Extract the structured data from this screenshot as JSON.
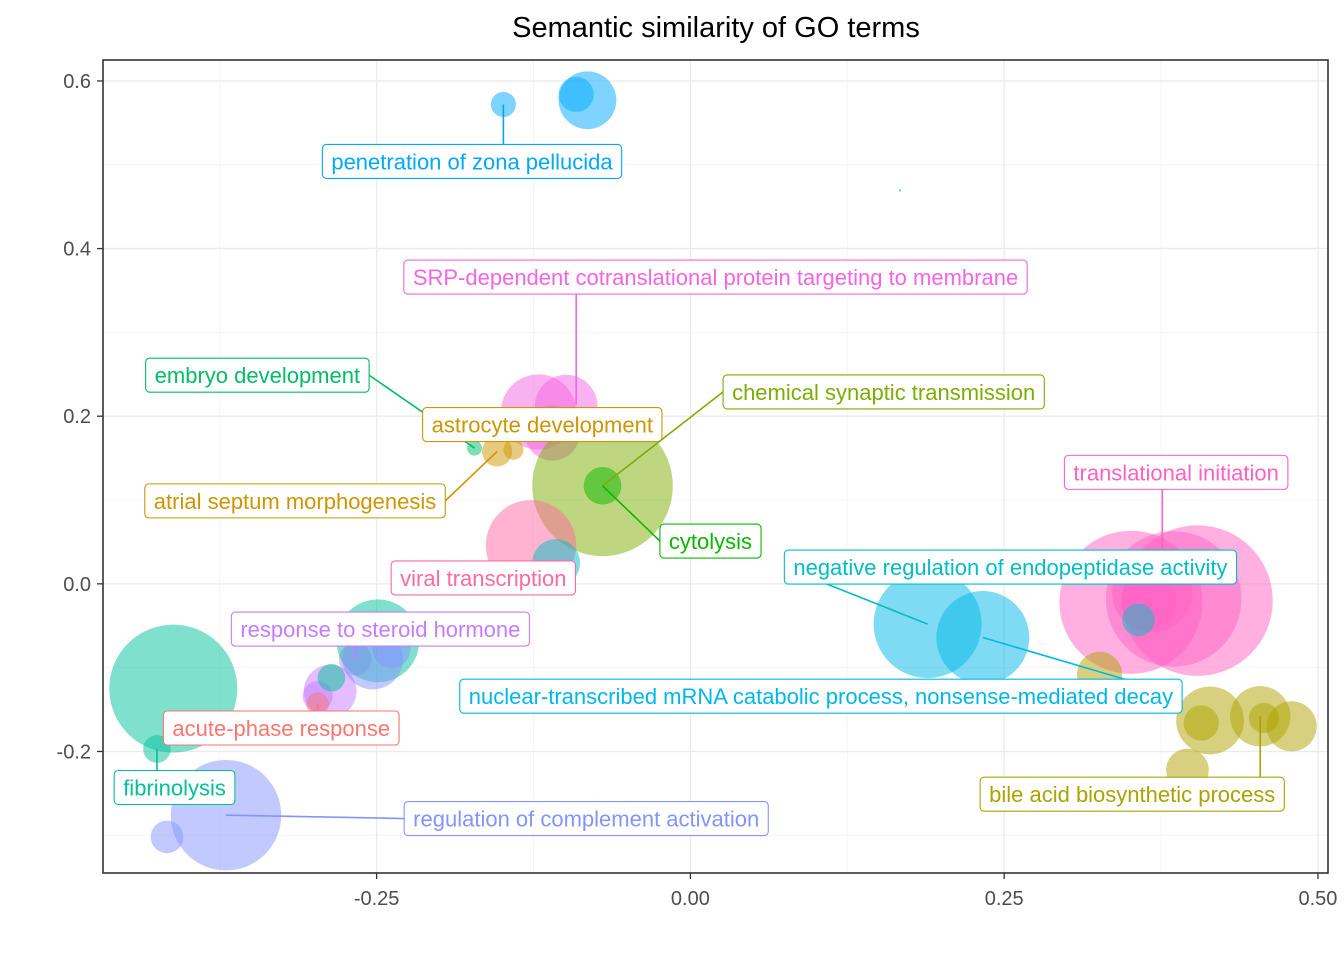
{
  "chart_data": {
    "type": "scatter",
    "title": "Semantic similarity of GO terms",
    "xlabel": "",
    "ylabel": "",
    "xlim": [
      -0.468,
      0.508
    ],
    "ylim": [
      -0.345,
      0.625
    ],
    "x_ticks": [
      -0.25,
      0.0,
      0.25,
      0.5
    ],
    "x_tick_labels": [
      "-0.25",
      "0.00",
      "0.25",
      "0.50"
    ],
    "y_ticks": [
      0.6,
      0.4,
      0.2,
      0.0,
      -0.2
    ],
    "y_tick_labels": [
      "0.6",
      "0.4",
      "0.2",
      "0.0",
      "-0.2"
    ],
    "grid": true,
    "legend": "none",
    "point_opacity": 0.5,
    "clusters": [
      {
        "color": "#00A9FF",
        "points": [
          {
            "x": -0.149,
            "y": 0.572,
            "r": 0.01
          },
          {
            "x": -0.082,
            "y": 0.577,
            "r": 0.023
          },
          {
            "x": -0.091,
            "y": 0.584,
            "r": 0.014
          }
        ]
      },
      {
        "color": "#F564E3",
        "points": [
          {
            "x": -0.121,
            "y": 0.205,
            "r": 0.03
          },
          {
            "x": -0.099,
            "y": 0.212,
            "r": 0.025
          },
          {
            "x": -0.11,
            "y": 0.18,
            "r": 0.022
          }
        ]
      },
      {
        "color": "#00BE67",
        "points": [
          {
            "x": -0.172,
            "y": 0.162,
            "r": 0.006
          }
        ]
      },
      {
        "color": "#CD9600",
        "points": [
          {
            "x": -0.154,
            "y": 0.158,
            "r": 0.012
          },
          {
            "x": -0.141,
            "y": 0.16,
            "r": 0.008
          }
        ]
      },
      {
        "color": "#7CAE00",
        "points": [
          {
            "x": -0.07,
            "y": 0.117,
            "r": 0.056
          }
        ]
      },
      {
        "color": "#0CB702",
        "points": [
          {
            "x": -0.07,
            "y": 0.117,
            "r": 0.015
          }
        ]
      },
      {
        "color": "#FF68A1",
        "points": [
          {
            "x": -0.127,
            "y": 0.046,
            "r": 0.036
          }
        ]
      },
      {
        "color": "#00BFC4",
        "points": [
          {
            "x": -0.107,
            "y": 0.025,
            "r": 0.019
          }
        ]
      },
      {
        "color": "#C77CFF",
        "points": [
          {
            "x": -0.287,
            "y": -0.128,
            "r": 0.021
          },
          {
            "x": -0.297,
            "y": -0.134,
            "r": 0.012
          },
          {
            "x": -0.267,
            "y": -0.09,
            "r": 0.013
          }
        ]
      },
      {
        "color": "#00C19A",
        "points": [
          {
            "x": -0.249,
            "y": -0.068,
            "r": 0.033
          },
          {
            "x": -0.412,
            "y": -0.125,
            "r": 0.051
          },
          {
            "x": -0.425,
            "y": -0.197,
            "r": 0.011
          },
          {
            "x": -0.286,
            "y": -0.112,
            "r": 0.011
          },
          {
            "x": -0.113,
            "y": -0.138,
            "r": 0.008
          }
        ]
      },
      {
        "color": "#F8766D",
        "points": [
          {
            "x": -0.297,
            "y": -0.143,
            "r": 0.009
          }
        ]
      },
      {
        "color": "#8494FF",
        "points": [
          {
            "x": -0.253,
            "y": -0.09,
            "r": 0.024
          },
          {
            "x": -0.238,
            "y": -0.078,
            "r": 0.015
          },
          {
            "x": -0.37,
            "y": -0.276,
            "r": 0.044
          },
          {
            "x": -0.417,
            "y": -0.302,
            "r": 0.013
          }
        ]
      },
      {
        "color": "#FF61C3",
        "points": [
          {
            "x": 0.351,
            "y": -0.022,
            "r": 0.057
          },
          {
            "x": 0.404,
            "y": -0.02,
            "r": 0.06
          },
          {
            "x": 0.385,
            "y": -0.018,
            "r": 0.054
          },
          {
            "x": 0.368,
            "y": -0.01,
            "r": 0.032
          },
          {
            "x": 0.365,
            "y": -0.021,
            "r": 0.022
          }
        ]
      },
      {
        "color": "#00B8E7",
        "points": [
          {
            "x": 0.189,
            "y": -0.048,
            "r": 0.043
          },
          {
            "x": 0.233,
            "y": -0.064,
            "r": 0.037
          }
        ]
      },
      {
        "color": "#00BFC4",
        "points": [
          {
            "x": 0.357,
            "y": -0.043,
            "r": 0.013
          }
        ]
      },
      {
        "color": "#AEA200",
        "points": [
          {
            "x": 0.326,
            "y": -0.108,
            "r": 0.018
          },
          {
            "x": 0.414,
            "y": -0.163,
            "r": 0.027
          },
          {
            "x": 0.454,
            "y": -0.158,
            "r": 0.024
          },
          {
            "x": 0.479,
            "y": -0.17,
            "r": 0.02
          },
          {
            "x": 0.396,
            "y": -0.222,
            "r": 0.017
          },
          {
            "x": 0.407,
            "y": -0.166,
            "r": 0.014
          },
          {
            "x": 0.457,
            "y": -0.16,
            "r": 0.012
          }
        ]
      }
    ],
    "labels": [
      {
        "text": "penetration of zona pellucida",
        "color": "#00A9FF",
        "lx": -0.174,
        "ly": 0.504,
        "px": -0.149,
        "py": 0.572,
        "lineFromLabel": "top"
      },
      {
        "text": "SRP-dependent cotranslational protein targeting to membrane",
        "color": "#F564E3",
        "lx": 0.02,
        "ly": 0.366,
        "px": -0.091,
        "py": 0.214,
        "lineFromLabel": "bottom"
      },
      {
        "text": "embryo development",
        "color": "#00BE67",
        "lx": -0.345,
        "ly": 0.249,
        "px": -0.172,
        "py": 0.162,
        "lineFromLabel": "right"
      },
      {
        "text": "astrocyte development",
        "color": "#CD9600",
        "lx": -0.118,
        "ly": 0.19,
        "px": -0.156,
        "py": 0.158,
        "lineFromLabel": "none"
      },
      {
        "text": "chemical synaptic transmission",
        "color": "#7CAE00",
        "lx": 0.154,
        "ly": 0.229,
        "px": -0.07,
        "py": 0.117,
        "lineFromLabel": "left"
      },
      {
        "text": "atrial septum morphogenesis",
        "color": "#CD9600",
        "lx": -0.315,
        "ly": 0.099,
        "px": -0.154,
        "py": 0.158,
        "lineFromLabel": "right"
      },
      {
        "text": "translational initiation",
        "color": "#FF61C3",
        "lx": 0.387,
        "ly": 0.133,
        "px": 0.376,
        "py": -0.002,
        "lineFromLabel": "bottom"
      },
      {
        "text": "cytolysis",
        "color": "#0CB702",
        "lx": 0.016,
        "ly": 0.051,
        "px": -0.07,
        "py": 0.117,
        "lineFromLabel": "left"
      },
      {
        "text": "negative regulation of endopeptidase activity",
        "color": "#00BFC4",
        "lx": 0.255,
        "ly": 0.02,
        "px": 0.189,
        "py": -0.048,
        "lineFromLabel": "left"
      },
      {
        "text": "viral transcription",
        "color": "#FF68A1",
        "lx": -0.165,
        "ly": 0.007,
        "px": -0.127,
        "py": 0.046,
        "lineFromLabel": "none"
      },
      {
        "text": "response to steroid hormone",
        "color": "#C77CFF",
        "lx": -0.247,
        "ly": -0.054,
        "px": -0.267,
        "py": -0.09,
        "lineFromLabel": "bottom"
      },
      {
        "text": "nuclear-transcribed mRNA catabolic process, nonsense-mediated decay",
        "color": "#00B8E7",
        "lx": 0.104,
        "ly": -0.134,
        "px": 0.233,
        "py": -0.064,
        "lineFromLabel": "right"
      },
      {
        "text": "acute-phase response",
        "color": "#F8766D",
        "lx": -0.326,
        "ly": -0.172,
        "px": -0.297,
        "py": -0.143,
        "lineFromLabel": "top"
      },
      {
        "text": "fibrinolysis",
        "color": "#00C19A",
        "lx": -0.411,
        "ly": -0.243,
        "px": -0.425,
        "py": -0.197,
        "lineFromLabel": "top"
      },
      {
        "text": "regulation of complement activation",
        "color": "#8494FF",
        "lx": -0.083,
        "ly": -0.28,
        "px": -0.37,
        "py": -0.276,
        "lineFromLabel": "left"
      },
      {
        "text": "bile acid biosynthetic process",
        "color": "#AEA200",
        "lx": 0.352,
        "ly": -0.251,
        "px": 0.454,
        "py": -0.158,
        "lineFromLabel": "top"
      }
    ]
  },
  "colors": {
    "panel_border": "#333333",
    "grid_major": "#ebebeb",
    "grid_minor": "#f5f5f5",
    "stray_mark": "#00A9FF"
  }
}
